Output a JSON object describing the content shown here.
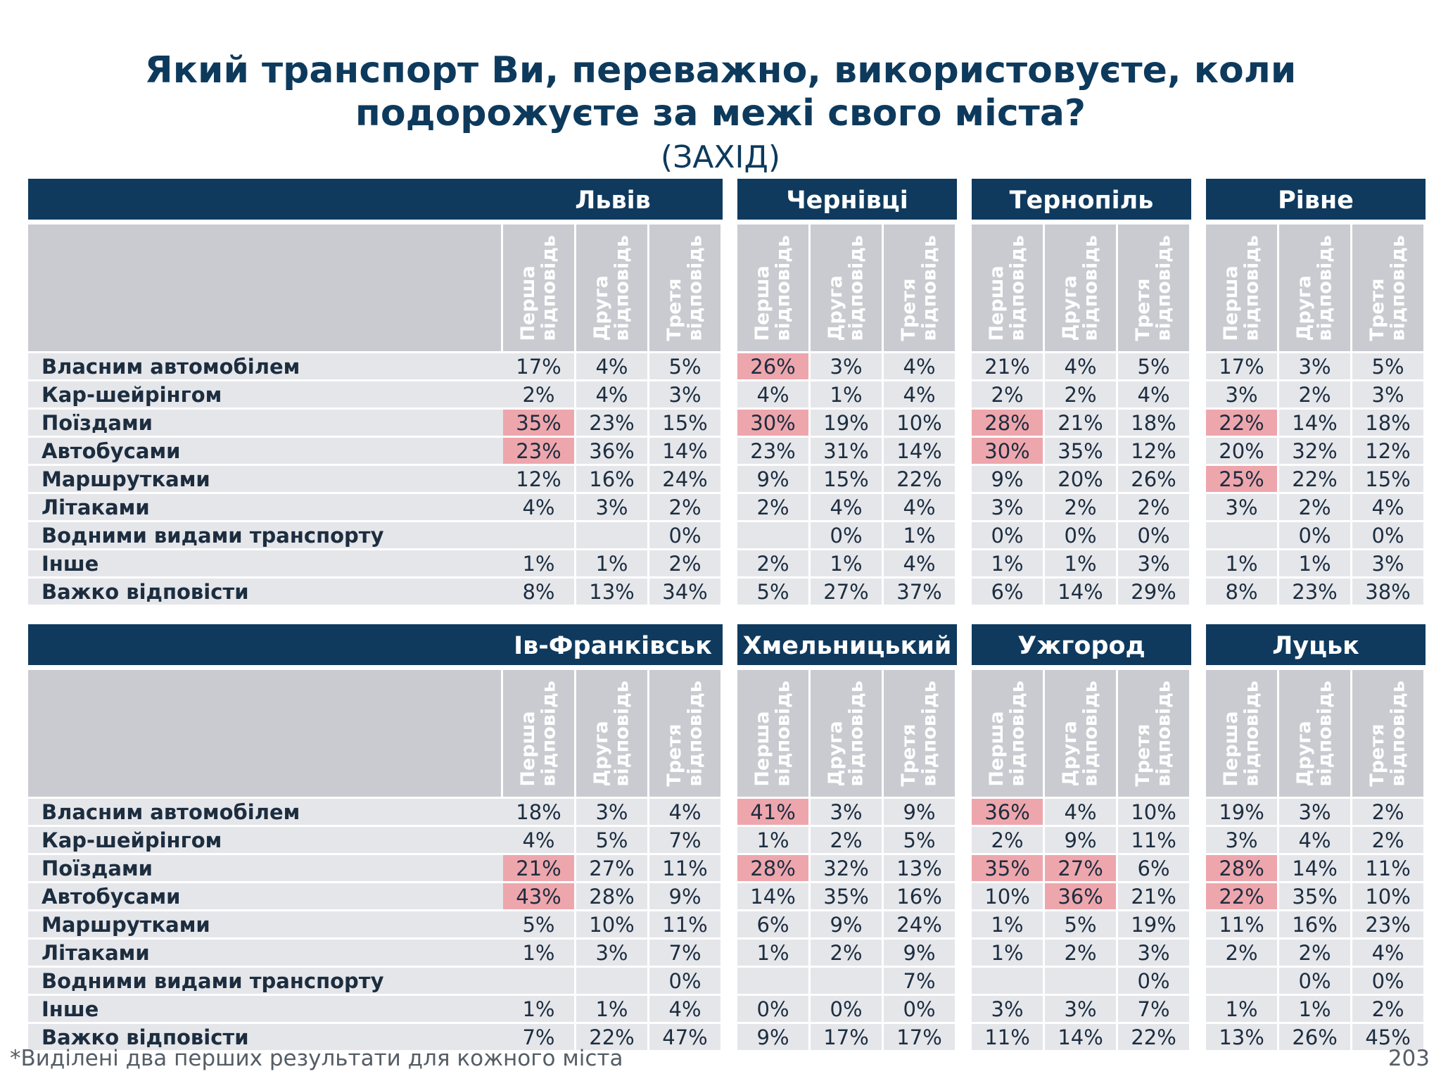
{
  "title_lines": [
    "Який транспорт Ви, переважно, використовуєте, коли",
    "подорожуєте за межі свого міста?"
  ],
  "subtitle": "(ЗАХІД)",
  "sub_headers": [
    "Перша\nвідповідь",
    "Друга\nвідповідь",
    "Третя\nвідповідь"
  ],
  "row_labels": [
    "Власним автомобілем",
    "Кар-шейрінгом",
    "Поїздами",
    "Автобусами",
    "Маршрутками",
    "Літаками",
    "Водними видами транспорту",
    "Інше",
    "Важко відповісти"
  ],
  "blocks": [
    {
      "cities": [
        {
          "name": "Львів",
          "values": [
            [
              "17%",
              "4%",
              "5%"
            ],
            [
              "2%",
              "4%",
              "3%"
            ],
            [
              "35%",
              "23%",
              "15%"
            ],
            [
              "23%",
              "36%",
              "14%"
            ],
            [
              "12%",
              "16%",
              "24%"
            ],
            [
              "4%",
              "3%",
              "2%"
            ],
            [
              "",
              "",
              "0%"
            ],
            [
              "1%",
              "1%",
              "2%"
            ],
            [
              "8%",
              "13%",
              "34%"
            ]
          ],
          "highlights": [
            [
              2,
              0
            ],
            [
              3,
              0
            ]
          ]
        },
        {
          "name": "Чернівці",
          "values": [
            [
              "26%",
              "3%",
              "4%"
            ],
            [
              "4%",
              "1%",
              "4%"
            ],
            [
              "30%",
              "19%",
              "10%"
            ],
            [
              "23%",
              "31%",
              "14%"
            ],
            [
              "9%",
              "15%",
              "22%"
            ],
            [
              "2%",
              "4%",
              "4%"
            ],
            [
              "",
              "0%",
              "1%"
            ],
            [
              "2%",
              "1%",
              "4%"
            ],
            [
              "5%",
              "27%",
              "37%"
            ]
          ],
          "highlights": [
            [
              0,
              0
            ],
            [
              2,
              0
            ]
          ]
        },
        {
          "name": "Тернопіль",
          "values": [
            [
              "21%",
              "4%",
              "5%"
            ],
            [
              "2%",
              "2%",
              "4%"
            ],
            [
              "28%",
              "21%",
              "18%"
            ],
            [
              "30%",
              "35%",
              "12%"
            ],
            [
              "9%",
              "20%",
              "26%"
            ],
            [
              "3%",
              "2%",
              "2%"
            ],
            [
              "0%",
              "0%",
              "0%"
            ],
            [
              "1%",
              "1%",
              "3%"
            ],
            [
              "6%",
              "14%",
              "29%"
            ]
          ],
          "highlights": [
            [
              2,
              0
            ],
            [
              3,
              0
            ]
          ]
        },
        {
          "name": "Рівне",
          "values": [
            [
              "17%",
              "3%",
              "5%"
            ],
            [
              "3%",
              "2%",
              "3%"
            ],
            [
              "22%",
              "14%",
              "18%"
            ],
            [
              "20%",
              "32%",
              "12%"
            ],
            [
              "25%",
              "22%",
              "15%"
            ],
            [
              "3%",
              "2%",
              "4%"
            ],
            [
              "",
              "0%",
              "0%"
            ],
            [
              "1%",
              "1%",
              "3%"
            ],
            [
              "8%",
              "23%",
              "38%"
            ]
          ],
          "highlights": [
            [
              2,
              0
            ],
            [
              4,
              0
            ]
          ]
        }
      ]
    },
    {
      "cities": [
        {
          "name": "Ів-Франківськ",
          "values": [
            [
              "18%",
              "3%",
              "4%"
            ],
            [
              "4%",
              "5%",
              "7%"
            ],
            [
              "21%",
              "27%",
              "11%"
            ],
            [
              "43%",
              "28%",
              "9%"
            ],
            [
              "5%",
              "10%",
              "11%"
            ],
            [
              "1%",
              "3%",
              "7%"
            ],
            [
              "",
              "",
              "0%"
            ],
            [
              "1%",
              "1%",
              "4%"
            ],
            [
              "7%",
              "22%",
              "47%"
            ]
          ],
          "highlights": [
            [
              2,
              0
            ],
            [
              3,
              0
            ]
          ]
        },
        {
          "name": "Хмельницький",
          "values": [
            [
              "41%",
              "3%",
              "9%"
            ],
            [
              "1%",
              "2%",
              "5%"
            ],
            [
              "28%",
              "32%",
              "13%"
            ],
            [
              "14%",
              "35%",
              "16%"
            ],
            [
              "6%",
              "9%",
              "24%"
            ],
            [
              "1%",
              "2%",
              "9%"
            ],
            [
              "",
              "",
              "7%"
            ],
            [
              "0%",
              "0%",
              "0%"
            ],
            [
              "9%",
              "17%",
              "17%"
            ]
          ],
          "highlights": [
            [
              0,
              0
            ],
            [
              2,
              0
            ]
          ]
        },
        {
          "name": "Ужгород",
          "values": [
            [
              "36%",
              "4%",
              "10%"
            ],
            [
              "2%",
              "9%",
              "11%"
            ],
            [
              "35%",
              "27%",
              "6%"
            ],
            [
              "10%",
              "36%",
              "21%"
            ],
            [
              "1%",
              "5%",
              "19%"
            ],
            [
              "1%",
              "2%",
              "3%"
            ],
            [
              "",
              "",
              "0%"
            ],
            [
              "3%",
              "3%",
              "7%"
            ],
            [
              "11%",
              "14%",
              "22%"
            ]
          ],
          "highlights": [
            [
              0,
              0
            ],
            [
              2,
              0
            ],
            [
              2,
              1
            ],
            [
              3,
              1
            ]
          ]
        },
        {
          "name": "Луцьк",
          "values": [
            [
              "19%",
              "3%",
              "2%"
            ],
            [
              "3%",
              "4%",
              "2%"
            ],
            [
              "28%",
              "14%",
              "11%"
            ],
            [
              "22%",
              "35%",
              "10%"
            ],
            [
              "11%",
              "16%",
              "23%"
            ],
            [
              "2%",
              "2%",
              "4%"
            ],
            [
              "",
              "0%",
              "0%"
            ],
            [
              "1%",
              "1%",
              "2%"
            ],
            [
              "13%",
              "26%",
              "45%"
            ]
          ],
          "highlights": [
            [
              2,
              0
            ],
            [
              3,
              0
            ]
          ]
        }
      ]
    }
  ],
  "footnote": "*Виділені два перших результати для кожного міста",
  "page_number": "203",
  "colors": {
    "header_bg": "#0f3a5e",
    "highlight": "#eea6ad",
    "cell_bg": "#e5e6ea",
    "subheader_bg": "#c9cbd1",
    "title": "#0d3a5c"
  }
}
